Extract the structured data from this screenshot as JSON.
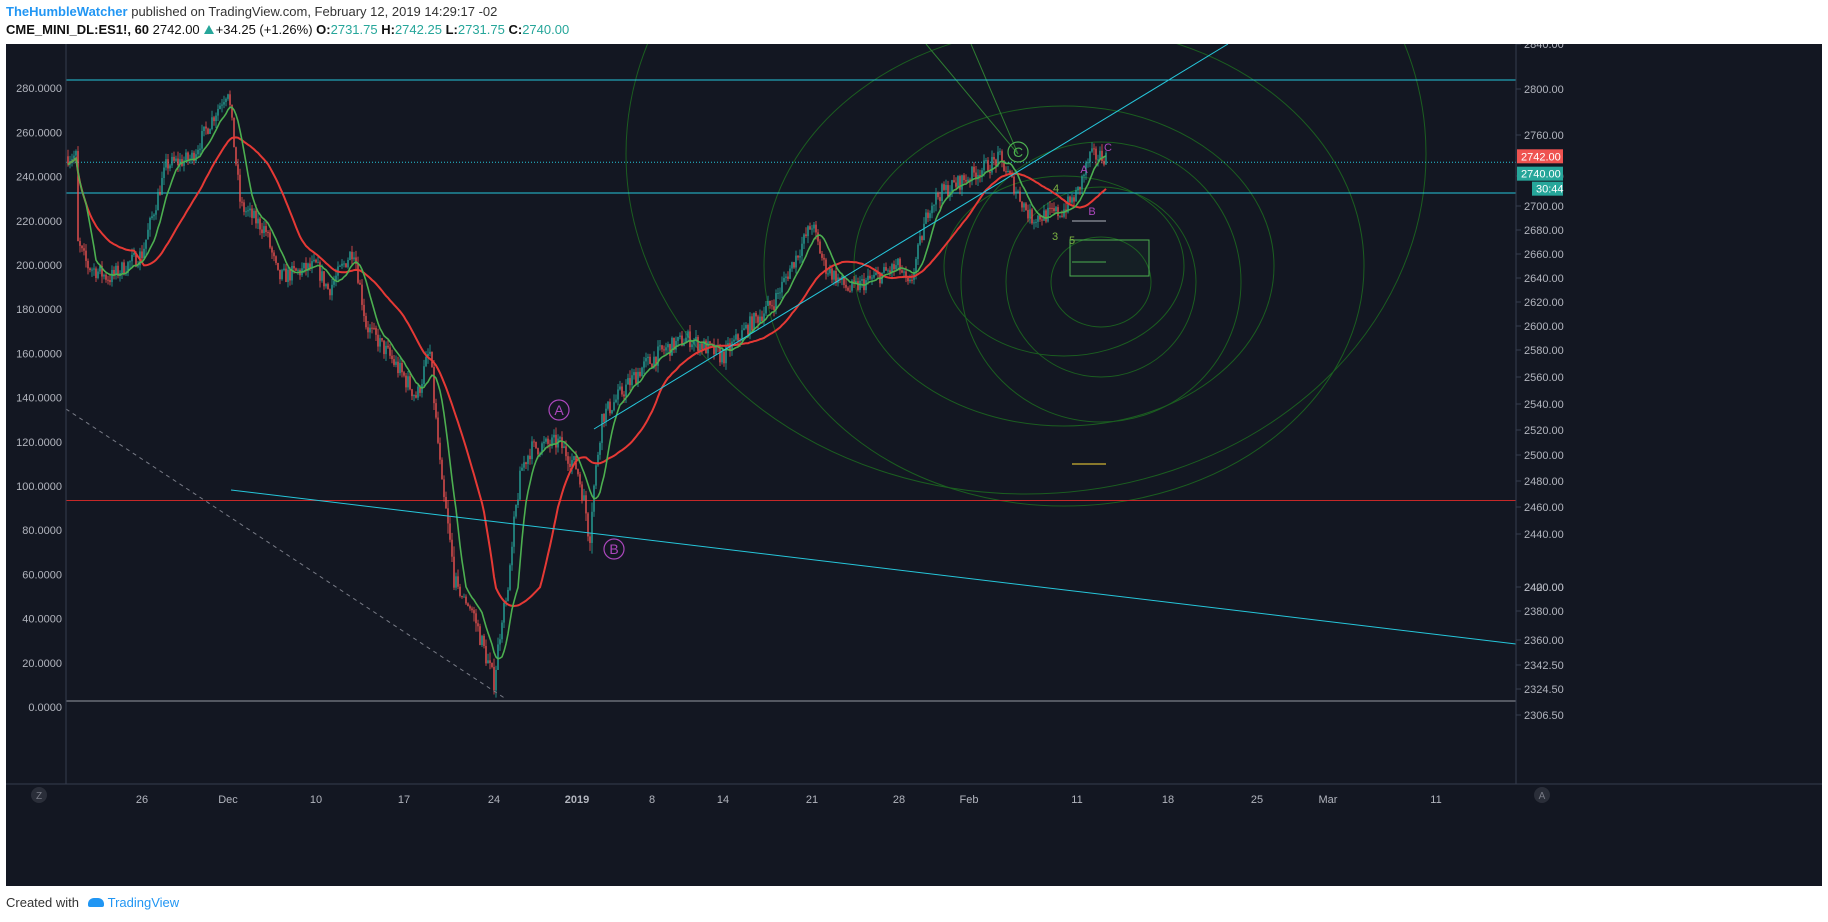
{
  "header": {
    "author": "TheHumbleWatcher",
    "published_text": "published on TradingView.com, February 12, 2019 14:29:17 -02",
    "symbol": "CME_MINI_DL:ES1!, 60",
    "last": "2742.00",
    "change": "+34.25 (+1.26%)",
    "o_label": "O:",
    "o_value": "2731.75",
    "h_label": "H:",
    "h_value": "2742.25",
    "l_label": "L:",
    "l_value": "2731.75",
    "c_label": "C:",
    "c_value": "2740.00"
  },
  "footer": {
    "created_with": "Created with",
    "brand": "TradingView"
  },
  "colors": {
    "background": "#131722",
    "up_candle": "#26a69a",
    "down_candle": "#ef5350",
    "ma_fast": "#4caf50",
    "ma_slow": "#e53935",
    "trendline": "#26c6da",
    "wave_label": "#ab47bc",
    "fib_circle": "#1b5e20"
  },
  "chart_data": {
    "type": "candlestick",
    "symbol": "CME_MINI_DL:ES1!",
    "interval": "60",
    "right_axis": {
      "ticks": [
        "2840.00",
        "2800.00",
        "2760.00",
        "2720.00",
        "2700.00",
        "2680.00",
        "2660.00",
        "2640.00",
        "2620.00",
        "2600.00",
        "2580.00",
        "2560.00",
        "2540.00",
        "2520.00",
        "2500.00",
        "2480.00",
        "2460.00",
        "2440.00",
        "2420.00",
        "2400.00",
        "2380.00",
        "2360.00",
        "2342.50",
        "2324.50",
        "2306.50"
      ],
      "labels": {
        "last_price": "2742.00",
        "close_price": "2740.00",
        "countdown": "30:44"
      }
    },
    "left_axis": {
      "ticks": [
        "280.0000",
        "260.0000",
        "240.0000",
        "220.0000",
        "200.0000",
        "180.0000",
        "160.0000",
        "140.0000",
        "120.0000",
        "100.0000",
        "80.0000",
        "60.0000",
        "40.0000",
        "20.0000",
        "0.0000"
      ]
    },
    "x_axis": {
      "ticks": [
        "26",
        "Dec",
        "10",
        "17",
        "24",
        "2019",
        "8",
        "14",
        "21",
        "28",
        "Feb",
        "11",
        "18",
        "25",
        "Mar",
        "11"
      ]
    },
    "price_path": [
      [
        "2018-11-20",
        2670
      ],
      [
        "2018-11-21",
        2650
      ],
      [
        "2018-11-23",
        2640
      ],
      [
        "2018-11-26",
        2660
      ],
      [
        "2018-11-28",
        2735
      ],
      [
        "2018-11-30",
        2740
      ],
      [
        "2018-12-03",
        2800
      ],
      [
        "2018-12-04",
        2700
      ],
      [
        "2018-12-06",
        2680
      ],
      [
        "2018-12-07",
        2640
      ],
      [
        "2018-12-10",
        2650
      ],
      [
        "2018-12-11",
        2630
      ],
      [
        "2018-12-13",
        2665
      ],
      [
        "2018-12-14",
        2600
      ],
      [
        "2018-12-17",
        2560
      ],
      [
        "2018-12-18",
        2545
      ],
      [
        "2018-12-19",
        2580
      ],
      [
        "2018-12-20",
        2470
      ],
      [
        "2018-12-21",
        2420
      ],
      [
        "2018-12-24",
        2330
      ],
      [
        "2018-12-26",
        2440
      ],
      [
        "2018-12-27",
        2490
      ],
      [
        "2018-12-28",
        2505
      ],
      [
        "2018-12-31",
        2510
      ],
      [
        "2019-01-02",
        2490
      ],
      [
        "2019-01-03",
        2445
      ],
      [
        "2019-01-04",
        2530
      ],
      [
        "2019-01-07",
        2565
      ],
      [
        "2019-01-09",
        2580
      ],
      [
        "2019-01-11",
        2590
      ],
      [
        "2019-01-14",
        2575
      ],
      [
        "2019-01-16",
        2600
      ],
      [
        "2019-01-18",
        2620
      ],
      [
        "2019-01-21",
        2685
      ],
      [
        "2019-01-22",
        2650
      ],
      [
        "2019-01-24",
        2630
      ],
      [
        "2019-01-28",
        2650
      ],
      [
        "2019-01-29",
        2630
      ],
      [
        "2019-01-31",
        2700
      ],
      [
        "2019-02-01",
        2710
      ],
      [
        "2019-02-04",
        2725
      ],
      [
        "2019-02-06",
        2740
      ],
      [
        "2019-02-08",
        2690
      ],
      [
        "2019-02-10",
        2695
      ],
      [
        "2019-02-11",
        2710
      ],
      [
        "2019-02-12",
        2742
      ]
    ],
    "horizontal_levels": [
      2808,
      2737,
      2711,
      2465,
      2324.5
    ],
    "annotations": {
      "primary_waves": [
        "A",
        "B",
        "C"
      ],
      "minor_waves": [
        "3",
        "4",
        "5",
        "A",
        "B",
        "C"
      ]
    }
  }
}
